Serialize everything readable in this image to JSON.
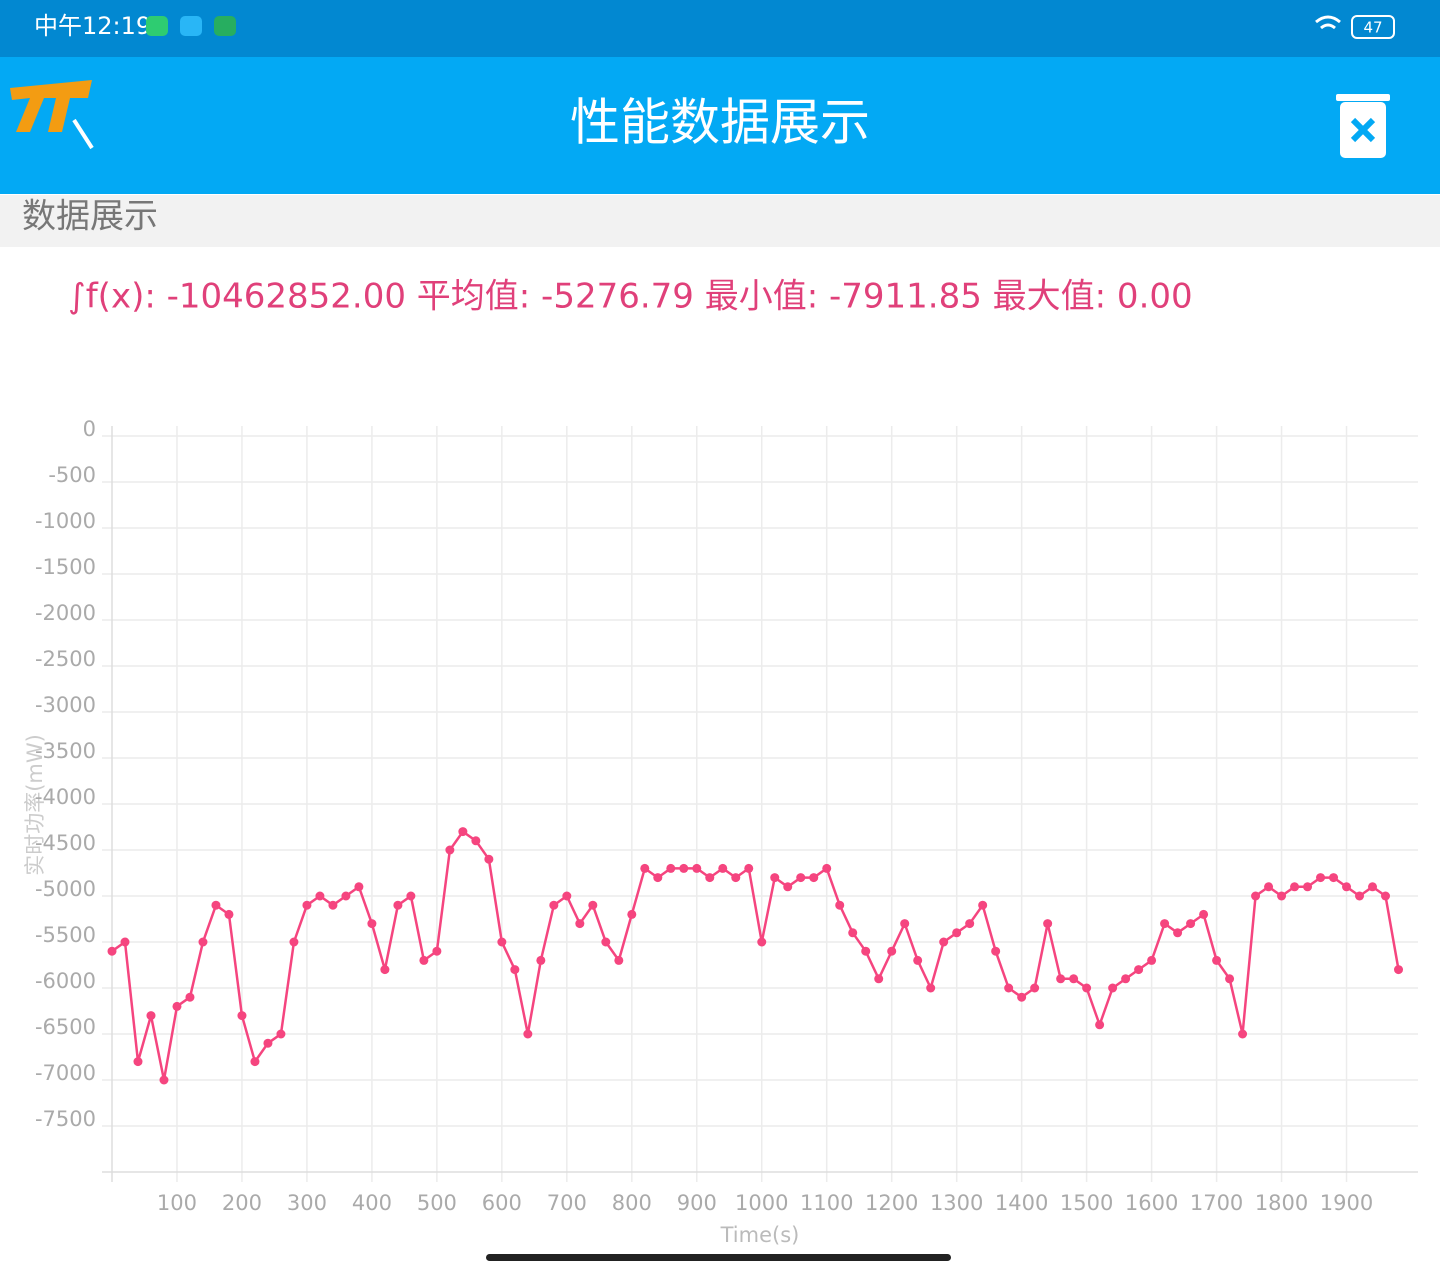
{
  "status_bar": {
    "time": "中午12:19",
    "battery": "47"
  },
  "toolbar": {
    "title": "性能数据展示"
  },
  "section": {
    "title": "数据展示"
  },
  "summary": "∫f(x): -10462852.00 平均值: -5276.79 最小值: -7911.85 最大值: 0.00",
  "chart_data": {
    "type": "line",
    "x_label": "Time(s)",
    "y_label": "实时功率(mW)",
    "x": [
      0,
      20,
      40,
      60,
      80,
      100,
      120,
      140,
      160,
      180,
      200,
      220,
      240,
      260,
      280,
      300,
      320,
      340,
      360,
      380,
      400,
      420,
      440,
      460,
      480,
      500,
      520,
      540,
      560,
      580,
      600,
      620,
      640,
      660,
      680,
      700,
      720,
      740,
      760,
      780,
      800,
      820,
      840,
      860,
      880,
      900,
      920,
      940,
      960,
      980,
      1000,
      1020,
      1040,
      1060,
      1080,
      1100,
      1120,
      1140,
      1160,
      1180,
      1200,
      1220,
      1240,
      1260,
      1280,
      1300,
      1320,
      1340,
      1360,
      1380,
      1400,
      1420,
      1440,
      1460,
      1480,
      1500,
      1520,
      1540,
      1560,
      1580,
      1600,
      1620,
      1640,
      1660,
      1680,
      1700,
      1720,
      1740,
      1760,
      1780,
      1800,
      1820,
      1840,
      1860,
      1880,
      1900,
      1920,
      1940,
      1960,
      1980
    ],
    "series": [
      {
        "name": "实时功率(mW)",
        "color": "#f5457f",
        "values": [
          -5600,
          -5500,
          -6800,
          -6300,
          -7000,
          -6200,
          -6100,
          -5500,
          -5100,
          -5200,
          -6300,
          -6800,
          -6600,
          -6500,
          -5500,
          -5100,
          -5000,
          -5100,
          -5000,
          -4900,
          -5300,
          -5800,
          -5100,
          -5000,
          -5700,
          -5600,
          -4500,
          -4300,
          -4400,
          -4600,
          -5500,
          -5800,
          -6500,
          -5700,
          -5100,
          -5000,
          -5300,
          -5100,
          -5500,
          -5700,
          -5200,
          -4700,
          -4800,
          -4700,
          -4700,
          -4700,
          -4800,
          -4700,
          -4800,
          -4700,
          -5500,
          -4800,
          -4900,
          -4800,
          -4800,
          -4700,
          -5100,
          -5400,
          -5600,
          -5900,
          -5600,
          -5300,
          -5700,
          -6000,
          -5500,
          -5400,
          -5300,
          -5100,
          -5600,
          -6000,
          -6100,
          -6000,
          -5300,
          -5900,
          -5900,
          -6000,
          -6400,
          -6000,
          -5900,
          -5800,
          -5700,
          -5300,
          -5400,
          -5300,
          -5200,
          -5700,
          -5900,
          -6500,
          -5000,
          -4900,
          -5000,
          -4900,
          -4900,
          -4800,
          -4800,
          -4900,
          -5000,
          -4900,
          -5000,
          -5800
        ]
      }
    ],
    "xlim": [
      0,
      2010
    ],
    "ylim": [
      -8000,
      0
    ],
    "xticks": [
      100,
      200,
      300,
      400,
      500,
      600,
      700,
      800,
      900,
      1000,
      1100,
      1200,
      1300,
      1400,
      1500,
      1600,
      1700,
      1800,
      1900
    ],
    "yticks": [
      0,
      -500,
      -1000,
      -1500,
      -2000,
      -2500,
      -3000,
      -3500,
      -4000,
      -4500,
      -5000,
      -5500,
      -6000,
      -6500,
      -7000,
      -7500
    ],
    "grid": true
  }
}
